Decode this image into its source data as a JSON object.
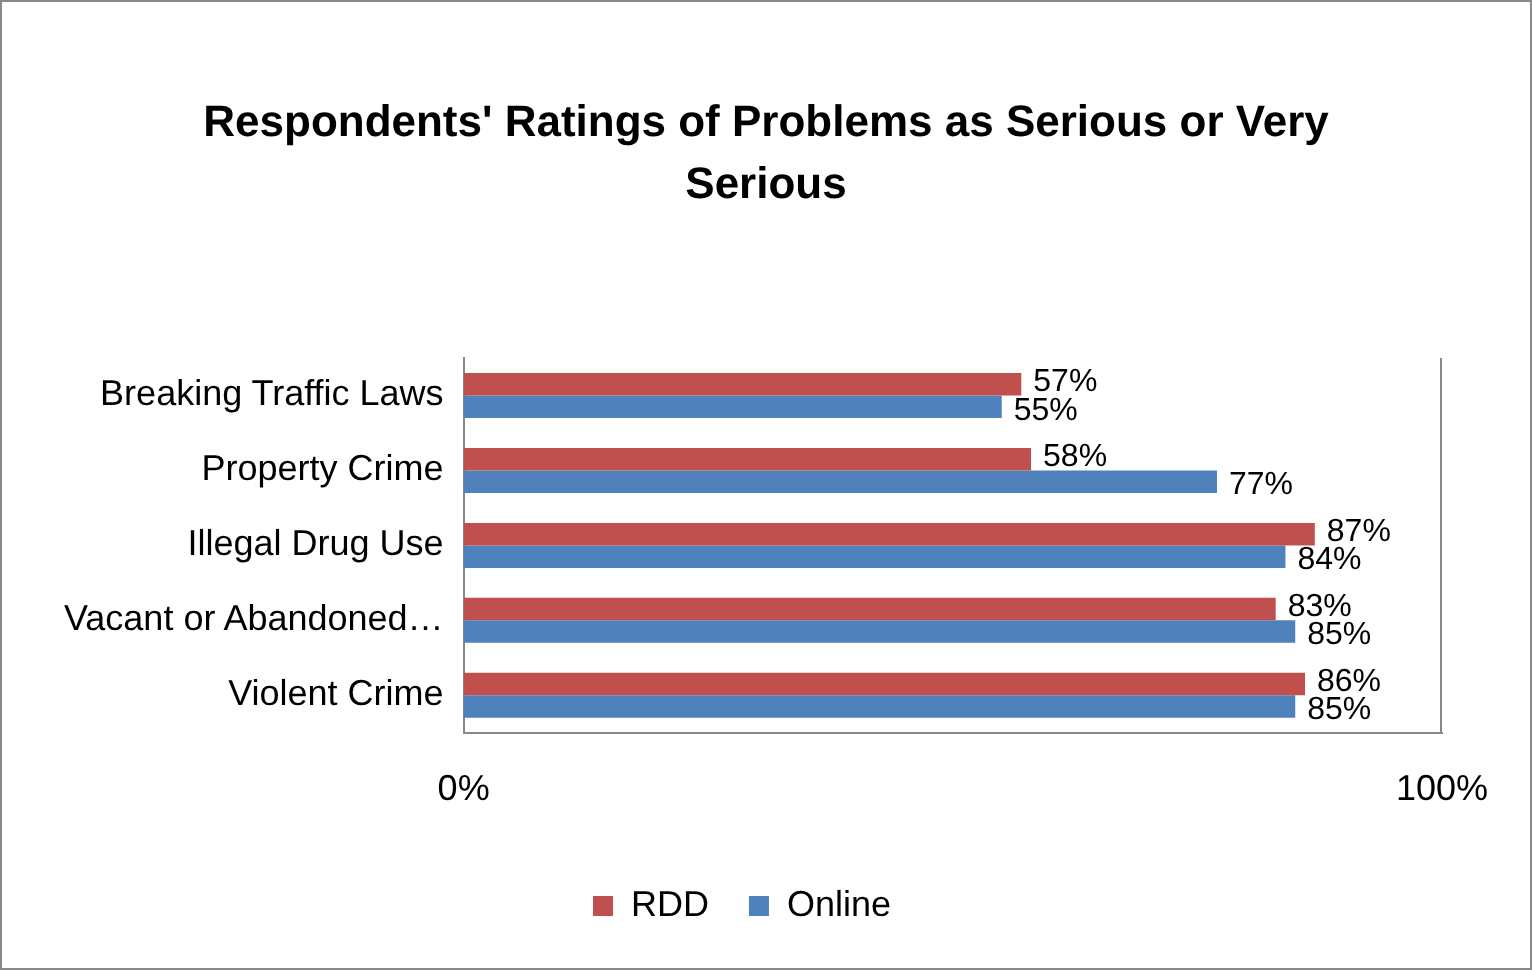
{
  "chart_data": {
    "type": "bar",
    "orientation": "horizontal",
    "title": "Respondents' Ratings of Problems as Serious or Very Serious",
    "categories": [
      "Breaking Traffic Laws",
      "Property Crime",
      "Illegal Drug Use",
      "Vacant or Abandoned…",
      "Violent Crime"
    ],
    "series": [
      {
        "name": "RDD",
        "color": "#c0504d",
        "values": [
          57,
          58,
          87,
          83,
          86
        ],
        "value_labels": [
          "57%",
          "58%",
          "87%",
          "83%",
          "86%"
        ]
      },
      {
        "name": "Online",
        "color": "#4f81bd",
        "values": [
          55,
          77,
          84,
          85,
          85
        ],
        "value_labels": [
          "55%",
          "77%",
          "84%",
          "85%",
          "85%"
        ]
      }
    ],
    "xlim": [
      0,
      100
    ],
    "xticks": [
      {
        "value": 0,
        "label": "0%"
      },
      {
        "value": 100,
        "label": "100%"
      }
    ],
    "legend": "bottom"
  }
}
